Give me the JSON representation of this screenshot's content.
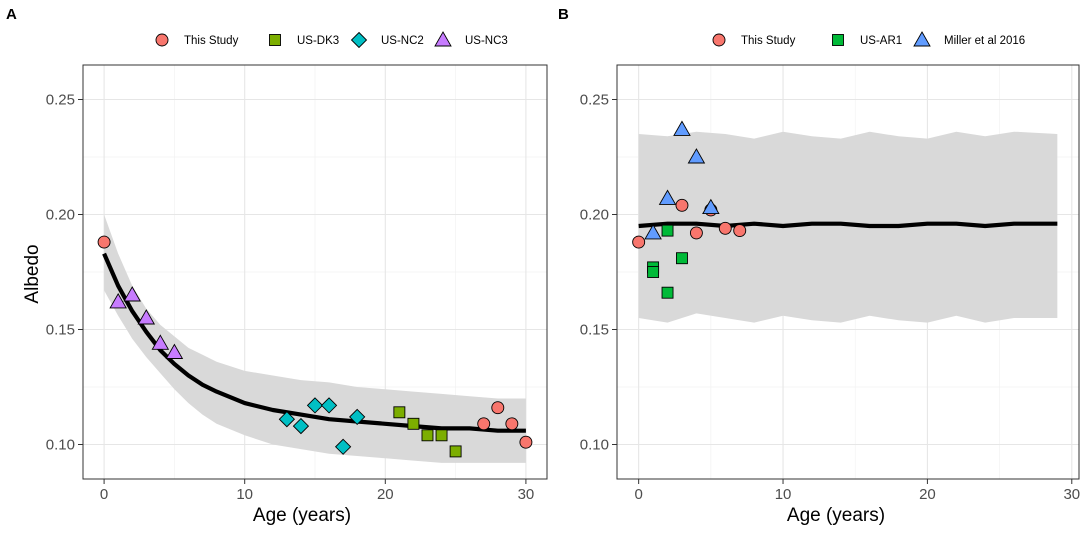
{
  "colors": {
    "this_study": "#F8766D",
    "us_dk3": "#7CAE00",
    "us_nc2": "#00BFC4",
    "us_nc3": "#C77CFF",
    "us_ar1": "#00BA38",
    "miller": "#619CFF",
    "ribbon": "#d9d9d9",
    "fit": "#000000"
  },
  "chart_data": [
    {
      "type": "scatter",
      "panel_label": "A",
      "xlabel": "Age (years)",
      "ylabel": "Albedo",
      "xlim": [
        -1.5,
        31.5
      ],
      "ylim": [
        0.085,
        0.265
      ],
      "xticks": [
        "0",
        "10",
        "20",
        "30"
      ],
      "yticks": [
        "0.10",
        "0.15",
        "0.20",
        "0.25"
      ],
      "legend_position": "top",
      "series": [
        {
          "name": "This Study",
          "shape": "circle",
          "color_key": "this_study",
          "x": [
            0,
            27,
            28,
            29,
            30
          ],
          "y": [
            0.188,
            0.109,
            0.116,
            0.109,
            0.101
          ]
        },
        {
          "name": "US-DK3",
          "shape": "square",
          "color_key": "us_dk3",
          "x": [
            21,
            22,
            23,
            24,
            25
          ],
          "y": [
            0.114,
            0.109,
            0.104,
            0.104,
            0.097
          ]
        },
        {
          "name": "US-NC2",
          "shape": "diamond",
          "color_key": "us_nc2",
          "x": [
            13,
            14,
            15,
            16,
            17,
            18
          ],
          "y": [
            0.111,
            0.108,
            0.117,
            0.117,
            0.099,
            0.112
          ]
        },
        {
          "name": "US-NC3",
          "shape": "triangle",
          "color_key": "us_nc3",
          "x": [
            1,
            2,
            3,
            4,
            5
          ],
          "y": [
            0.162,
            0.165,
            0.155,
            0.144,
            0.14
          ]
        }
      ],
      "fit": {
        "x": [
          0,
          1,
          2,
          3,
          4,
          5,
          6,
          7,
          8,
          10,
          12,
          14,
          16,
          18,
          20,
          22,
          24,
          26,
          28,
          30
        ],
        "y": [
          0.183,
          0.169,
          0.158,
          0.149,
          0.141,
          0.135,
          0.13,
          0.126,
          0.123,
          0.118,
          0.115,
          0.113,
          0.111,
          0.11,
          0.109,
          0.108,
          0.107,
          0.107,
          0.106,
          0.106
        ],
        "lower": [
          0.167,
          0.156,
          0.146,
          0.138,
          0.131,
          0.124,
          0.118,
          0.113,
          0.109,
          0.104,
          0.1,
          0.098,
          0.096,
          0.095,
          0.094,
          0.093,
          0.092,
          0.092,
          0.092,
          0.092
        ],
        "upper": [
          0.2,
          0.183,
          0.169,
          0.159,
          0.152,
          0.147,
          0.142,
          0.139,
          0.136,
          0.132,
          0.13,
          0.128,
          0.127,
          0.125,
          0.124,
          0.123,
          0.122,
          0.121,
          0.12,
          0.12
        ]
      }
    },
    {
      "type": "scatter",
      "panel_label": "B",
      "xlabel": "Age (years)",
      "ylabel": "",
      "xlim": [
        -1.5,
        30.5
      ],
      "ylim": [
        0.085,
        0.265
      ],
      "xticks": [
        "0",
        "10",
        "20",
        "30"
      ],
      "yticks": [
        "0.10",
        "0.15",
        "0.20",
        "0.25"
      ],
      "legend_position": "top",
      "series": [
        {
          "name": "This Study",
          "shape": "circle",
          "color_key": "this_study",
          "x": [
            0,
            3,
            4,
            5,
            6,
            7
          ],
          "y": [
            0.188,
            0.204,
            0.192,
            0.202,
            0.194,
            0.193
          ]
        },
        {
          "name": "US-AR1",
          "shape": "square",
          "color_key": "us_ar1",
          "x": [
            1,
            1,
            2,
            2,
            3
          ],
          "y": [
            0.177,
            0.175,
            0.193,
            0.166,
            0.181
          ]
        },
        {
          "name": "Miller et al 2016",
          "shape": "triangle",
          "color_key": "miller",
          "x": [
            1,
            2,
            3,
            4,
            5
          ],
          "y": [
            0.192,
            0.207,
            0.237,
            0.225,
            0.203
          ]
        }
      ],
      "fit": {
        "x": [
          0,
          2,
          4,
          6,
          8,
          10,
          12,
          14,
          16,
          18,
          20,
          22,
          24,
          26,
          29
        ],
        "y": [
          0.195,
          0.196,
          0.196,
          0.195,
          0.196,
          0.195,
          0.196,
          0.196,
          0.195,
          0.195,
          0.196,
          0.196,
          0.195,
          0.196,
          0.196
        ],
        "lower": [
          0.155,
          0.153,
          0.157,
          0.155,
          0.153,
          0.156,
          0.154,
          0.153,
          0.156,
          0.154,
          0.153,
          0.156,
          0.153,
          0.155,
          0.155
        ],
        "upper": [
          0.235,
          0.234,
          0.236,
          0.235,
          0.233,
          0.236,
          0.234,
          0.233,
          0.236,
          0.234,
          0.233,
          0.236,
          0.234,
          0.236,
          0.235
        ]
      }
    }
  ]
}
